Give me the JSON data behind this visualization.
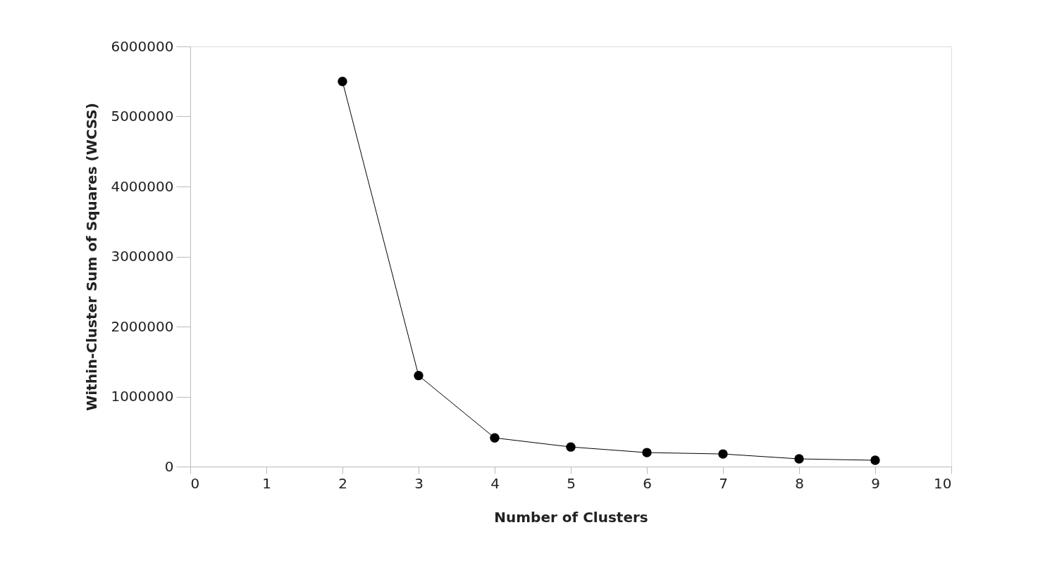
{
  "chart_data": {
    "type": "line",
    "xlabel": "Number of Clusters",
    "ylabel": "Within-Cluster Sum of Squares (WCSS)",
    "x": [
      2,
      3,
      4,
      5,
      6,
      7,
      8,
      9
    ],
    "series": [
      {
        "color": "#000000",
        "values": [
          5500000,
          1300000,
          410000,
          280000,
          200000,
          180000,
          110000,
          90000
        ]
      }
    ],
    "xlim": [
      0,
      10
    ],
    "xticks": [
      0,
      1,
      2,
      3,
      4,
      5,
      6,
      7,
      8,
      9,
      10
    ],
    "ylim": [
      0,
      6000000
    ],
    "yticks": [
      0,
      1000000,
      2000000,
      3000000,
      4000000,
      5000000,
      6000000
    ],
    "grid": false,
    "legend": false,
    "marker": "circle",
    "line_style": "solid"
  }
}
